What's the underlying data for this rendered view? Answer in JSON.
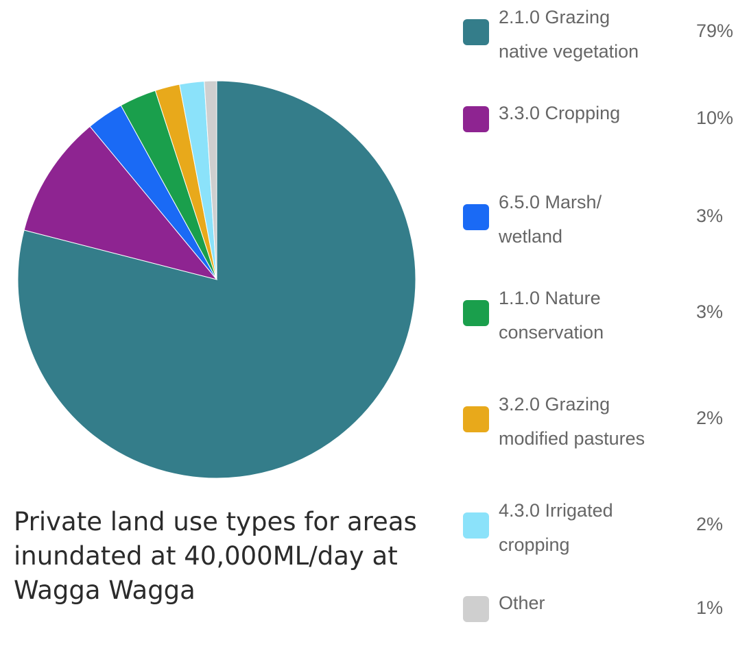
{
  "chart_data": {
    "type": "pie",
    "title": "",
    "slices": [
      {
        "label_lines": [
          "2.1.0 Grazing",
          "native vegetation"
        ],
        "value": 79,
        "display": "79%",
        "color": "#347D8A"
      },
      {
        "label_lines": [
          "3.3.0 Cropping"
        ],
        "value": 10,
        "display": "10%",
        "color": "#8E2491"
      },
      {
        "label_lines": [
          "6.5.0 Marsh/",
          "wetland"
        ],
        "value": 3,
        "display": "3%",
        "color": "#1A6AF5"
      },
      {
        "label_lines": [
          "1.1.0 Nature",
          "conservation"
        ],
        "value": 3,
        "display": "3%",
        "color": "#1A9F4C"
      },
      {
        "label_lines": [
          "3.2.0 Grazing",
          "modified pastures"
        ],
        "value": 2,
        "display": "2%",
        "color": "#E8A91B"
      },
      {
        "label_lines": [
          "4.3.0 Irrigated",
          "cropping"
        ],
        "value": 2,
        "display": "2%",
        "color": "#8BE2FA"
      },
      {
        "label_lines": [
          "Other"
        ],
        "value": 1,
        "display": "1%",
        "color": "#CFCFCF"
      }
    ],
    "legend_placement": "right"
  },
  "caption": {
    "line1": "Private land use types for areas",
    "line2": "inundated at 40,000ML/day at",
    "line3": "Wagga Wagga"
  }
}
